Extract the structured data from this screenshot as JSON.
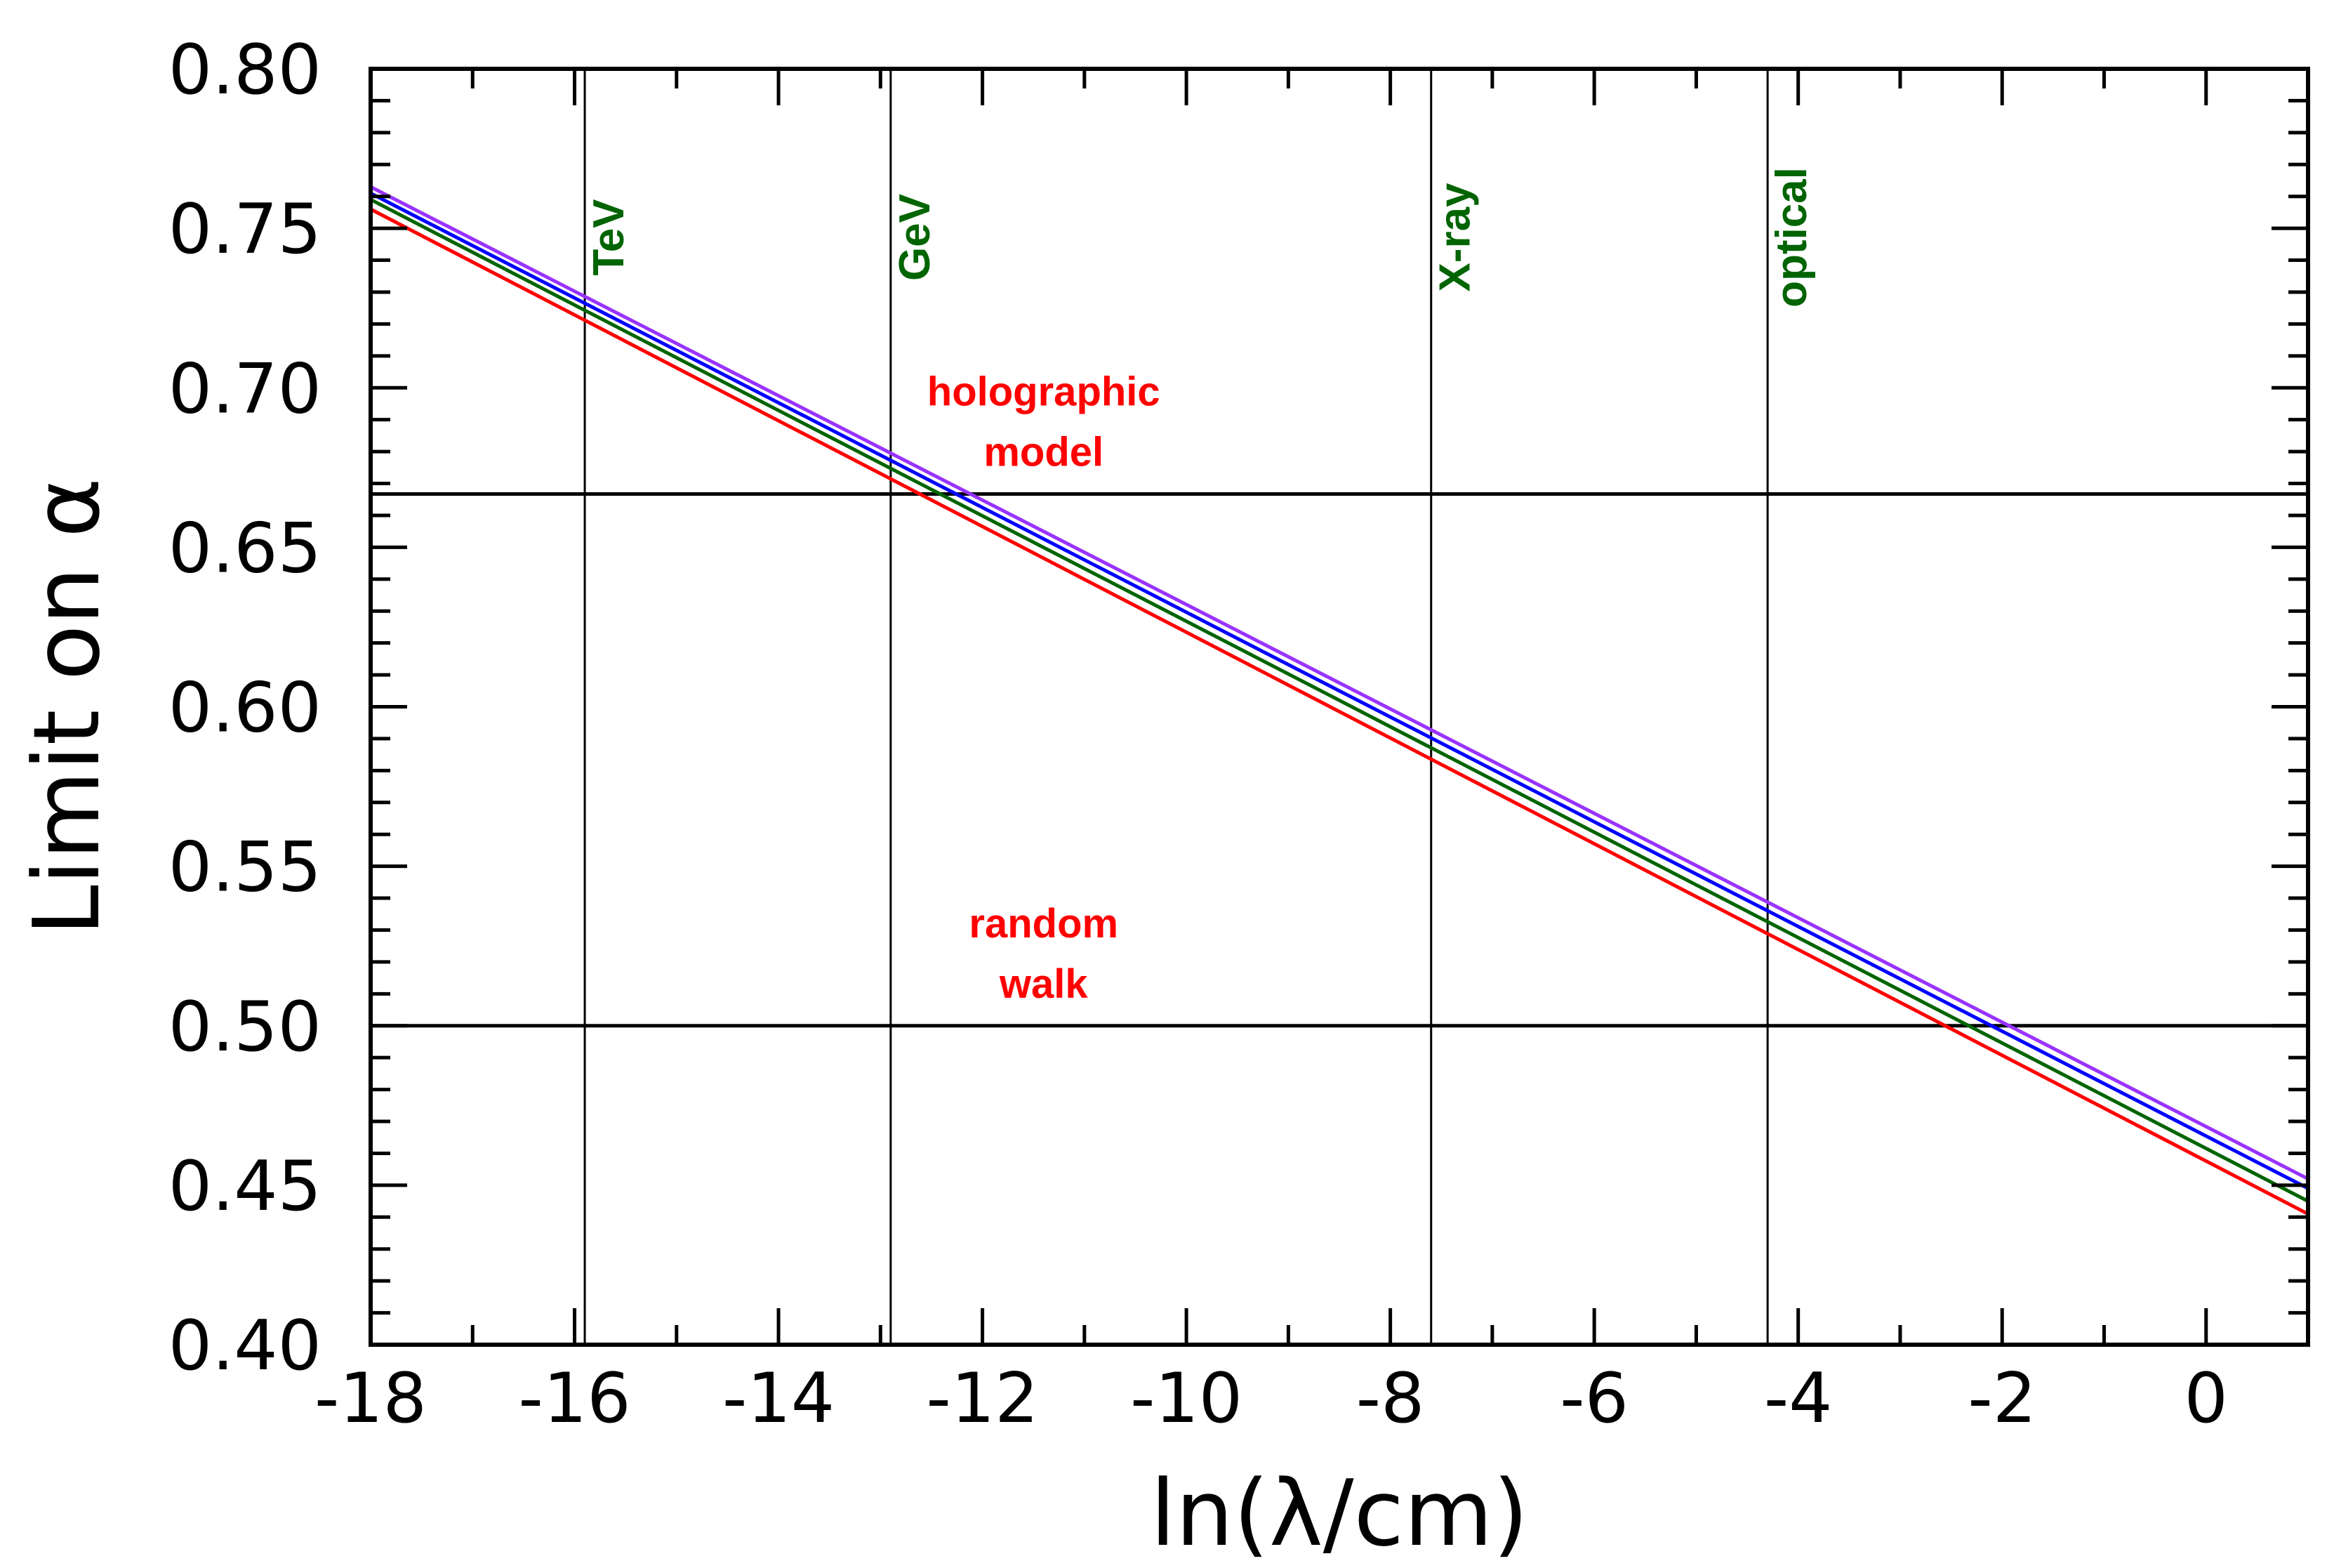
{
  "chart_data": {
    "type": "line",
    "xlabel": "ln(λ/cm)",
    "ylabel": "Limit on α",
    "xlim": [
      -18,
      1
    ],
    "ylim": [
      0.4,
      0.8
    ],
    "xticks": [
      -18,
      -16,
      -14,
      -12,
      -10,
      -8,
      -6,
      -4,
      -2,
      0
    ],
    "xtick_labels": [
      "-18",
      "-16",
      "-14",
      "-12",
      "-10",
      "-8",
      "-6",
      "-4",
      "-2",
      "0"
    ],
    "yticks": [
      0.4,
      0.45,
      0.5,
      0.55,
      0.6,
      0.65,
      0.7,
      0.75,
      0.8
    ],
    "ytick_labels": [
      "0.40",
      "0.45",
      "0.50",
      "0.55",
      "0.60",
      "0.65",
      "0.70",
      "0.75",
      "0.80"
    ],
    "grid": false,
    "series": [
      {
        "name": "red",
        "color": "#ff0000",
        "x": [
          -18,
          1
        ],
        "y": [
          0.756,
          0.441
        ]
      },
      {
        "name": "green",
        "color": "#006400",
        "x": [
          -18,
          1
        ],
        "y": [
          0.759,
          0.445
        ]
      },
      {
        "name": "blue",
        "color": "#0000ff",
        "x": [
          -18,
          1
        ],
        "y": [
          0.761,
          0.449
        ]
      },
      {
        "name": "purple",
        "color": "#9933ff",
        "x": [
          -18,
          1
        ],
        "y": [
          0.763,
          0.452
        ]
      }
    ],
    "hlines": [
      {
        "y": 0.6667,
        "label": [
          "holographic",
          "model"
        ],
        "label_x": -11.4,
        "label_color": "#ff0000"
      },
      {
        "y": 0.5,
        "label": [
          "random",
          "walk"
        ],
        "label_x": -11.4,
        "label_color": "#ff0000"
      }
    ],
    "vlines": [
      {
        "x": -15.9,
        "label": "TeV",
        "label_color": "#006400"
      },
      {
        "x": -12.9,
        "label": "GeV",
        "label_color": "#006400"
      },
      {
        "x": -7.6,
        "label": "X-ray",
        "label_color": "#006400"
      },
      {
        "x": -4.3,
        "label": "optical",
        "label_color": "#006400"
      }
    ]
  }
}
